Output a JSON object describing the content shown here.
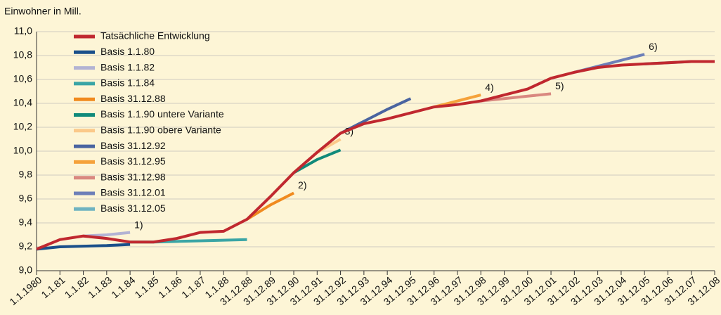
{
  "chart_data": {
    "type": "line",
    "y_label": "Einwohner in Mill.",
    "categories": [
      "1.1.1980",
      "1.1.81",
      "1.1.82",
      "1.1.83",
      "1.1.84",
      "1.1.85",
      "1.1.86",
      "1.1.87",
      "1.1.88",
      "31.12.88",
      "31.12.89",
      "31.12.90",
      "31.12.91",
      "31.12.92",
      "31.12.93",
      "31.12.94",
      "31.12.95",
      "31.12.96",
      "31.12.97",
      "31.12.98",
      "31.12.99",
      "31.12.00",
      "31.12.01",
      "31.12.02",
      "31.12.03",
      "31.12.04",
      "31.12.05",
      "31.12.06",
      "31.12.07",
      "31.12.08"
    ],
    "ylim": [
      9.0,
      11.0
    ],
    "yticks": [
      {
        "value": 9.0,
        "label": "9,0"
      },
      {
        "value": 9.2,
        "label": "9,2"
      },
      {
        "value": 9.4,
        "label": "9,4"
      },
      {
        "value": 9.6,
        "label": "9,6"
      },
      {
        "value": 9.8,
        "label": "9,8"
      },
      {
        "value": 10.0,
        "label": "10,0"
      },
      {
        "value": 10.2,
        "label": "10,2"
      },
      {
        "value": 10.4,
        "label": "10,4"
      },
      {
        "value": 10.6,
        "label": "10,6"
      },
      {
        "value": 10.8,
        "label": "10,8"
      },
      {
        "value": 11.0,
        "label": "11,0"
      }
    ],
    "grid": true,
    "series": [
      {
        "name": "Tatsächliche Entwicklung",
        "color": "#c0282f",
        "values": [
          9.18,
          9.26,
          9.29,
          9.27,
          9.24,
          9.24,
          9.27,
          9.32,
          9.33,
          9.43,
          9.62,
          9.82,
          9.99,
          10.15,
          10.23,
          10.27,
          10.32,
          10.37,
          10.39,
          10.42,
          10.47,
          10.52,
          10.61,
          10.66,
          10.7,
          10.72,
          10.73,
          10.74,
          10.75,
          10.75
        ]
      },
      {
        "name": "Basis 1.1.80",
        "color": "#1a4f8a",
        "values": [
          9.18,
          9.2,
          9.205,
          9.21,
          9.22,
          null,
          null,
          null,
          null,
          null,
          null,
          null,
          null,
          null,
          null,
          null,
          null,
          null,
          null,
          null,
          null,
          null,
          null,
          null,
          null,
          null,
          null,
          null,
          null,
          null
        ]
      },
      {
        "name": "Basis 1.1.82",
        "color": "#b3b3d3",
        "label": "1)",
        "values": [
          null,
          null,
          9.29,
          9.3,
          9.32,
          null,
          null,
          null,
          null,
          null,
          null,
          null,
          null,
          null,
          null,
          null,
          null,
          null,
          null,
          null,
          null,
          null,
          null,
          null,
          null,
          null,
          null,
          null,
          null,
          null
        ]
      },
      {
        "name": "Basis 1.1.84",
        "color": "#3aa5a5",
        "values": [
          null,
          null,
          null,
          null,
          9.24,
          9.24,
          9.245,
          9.25,
          9.255,
          9.26,
          null,
          null,
          null,
          null,
          null,
          null,
          null,
          null,
          null,
          null,
          null,
          null,
          null,
          null,
          null,
          null,
          null,
          null,
          null,
          null
        ]
      },
      {
        "name": "Basis 31.12.88",
        "color": "#f08a1e",
        "label": "2)",
        "values": [
          null,
          null,
          null,
          null,
          null,
          null,
          null,
          null,
          null,
          9.43,
          9.55,
          9.65,
          null,
          null,
          null,
          null,
          null,
          null,
          null,
          null,
          null,
          null,
          null,
          null,
          null,
          null,
          null,
          null,
          null,
          null
        ]
      },
      {
        "name": "Basis 1.1.90 untere Variante",
        "color": "#108a7a",
        "values": [
          null,
          null,
          null,
          null,
          null,
          null,
          null,
          null,
          null,
          null,
          null,
          9.82,
          9.93,
          10.01,
          null,
          null,
          null,
          null,
          null,
          null,
          null,
          null,
          null,
          null,
          null,
          null,
          null,
          null,
          null,
          null
        ]
      },
      {
        "name": "Basis 1.1.90 obere Variante",
        "color": "#fbc98a",
        "label": "3)",
        "values": [
          null,
          null,
          null,
          null,
          null,
          null,
          null,
          null,
          null,
          null,
          null,
          null,
          9.99,
          10.1,
          null,
          null,
          null,
          null,
          null,
          null,
          null,
          null,
          null,
          null,
          null,
          null,
          null,
          null,
          null,
          null
        ]
      },
      {
        "name": "Basis 31.12.92",
        "color": "#4a64a0",
        "values": [
          null,
          null,
          null,
          null,
          null,
          null,
          null,
          null,
          null,
          null,
          null,
          null,
          null,
          10.15,
          10.25,
          10.35,
          10.44,
          null,
          null,
          null,
          null,
          null,
          null,
          null,
          null,
          null,
          null,
          null,
          null,
          null
        ]
      },
      {
        "name": "Basis 31.12.95",
        "color": "#f5a23a",
        "label": "4)",
        "values": [
          null,
          null,
          null,
          null,
          null,
          null,
          null,
          null,
          null,
          null,
          null,
          null,
          null,
          null,
          null,
          null,
          null,
          10.37,
          10.42,
          10.47,
          null,
          null,
          null,
          null,
          null,
          null,
          null,
          null,
          null,
          null
        ]
      },
      {
        "name": "Basis 31.12.98",
        "color": "#d98880",
        "label": "5)",
        "values": [
          null,
          null,
          null,
          null,
          null,
          null,
          null,
          null,
          null,
          null,
          null,
          null,
          null,
          null,
          null,
          null,
          null,
          null,
          null,
          10.42,
          10.44,
          10.46,
          10.48,
          null,
          null,
          null,
          null,
          null,
          null,
          null
        ]
      },
      {
        "name": "Basis 31.12.01",
        "color": "#6d7fb8",
        "label": "6)",
        "values": [
          null,
          null,
          null,
          null,
          null,
          null,
          null,
          null,
          null,
          null,
          null,
          null,
          null,
          null,
          null,
          null,
          null,
          null,
          null,
          null,
          null,
          null,
          null,
          10.66,
          10.71,
          10.76,
          10.81,
          null,
          null,
          null
        ]
      },
      {
        "name": "Basis 31.12.05",
        "color": "#6fb3c0",
        "values": [
          null,
          null,
          null,
          null,
          null,
          null,
          null,
          null,
          null,
          null,
          null,
          null,
          null,
          null,
          null,
          null,
          null,
          null,
          null,
          null,
          null,
          null,
          null,
          null,
          null,
          null,
          10.73,
          10.74,
          10.75,
          10.75
        ]
      }
    ]
  }
}
